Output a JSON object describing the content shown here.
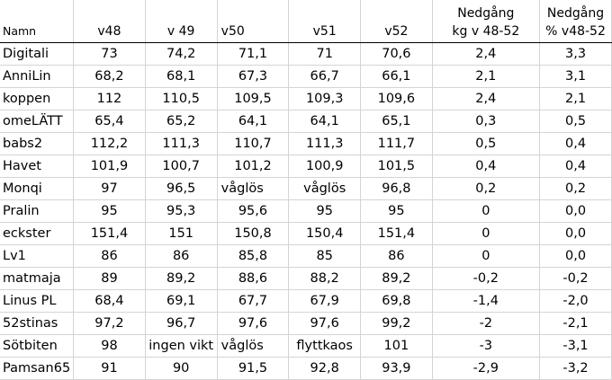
{
  "headers": {
    "name": "Namn",
    "w48": "v48",
    "w49": "v 49",
    "w50": "v50",
    "w51": "v51",
    "w52": "v52",
    "dec_kg_line1": "Nedgång",
    "dec_kg_line2": "kg v 48-52",
    "dec_pct_line1": "Nedgång",
    "dec_pct_line2": "% v48-52"
  },
  "rows": [
    {
      "name": "Digitali",
      "w48": "73",
      "w49": "74,2",
      "w50": "71,1",
      "w51": "71",
      "w52": "70,6",
      "dec_kg": "2,4",
      "dec_pct": "3,3"
    },
    {
      "name": "AnniLin",
      "w48": "68,2",
      "w49": "68,1",
      "w50": "67,3",
      "w51": "66,7",
      "w52": "66,1",
      "dec_kg": "2,1",
      "dec_pct": "3,1"
    },
    {
      "name": "koppen",
      "w48": "112",
      "w49": "110,5",
      "w50": "109,5",
      "w51": "109,3",
      "w52": "109,6",
      "dec_kg": "2,4",
      "dec_pct": "2,1"
    },
    {
      "name": "omeLÄTT",
      "w48": "65,4",
      "w49": "65,2",
      "w50": "64,1",
      "w51": "64,1",
      "w52": "65,1",
      "dec_kg": "0,3",
      "dec_pct": "0,5"
    },
    {
      "name": "babs2",
      "w48": "112,2",
      "w49": "111,3",
      "w50": "110,7",
      "w51": "111,3",
      "w52": "111,7",
      "dec_kg": "0,5",
      "dec_pct": "0,4"
    },
    {
      "name": "Havet",
      "w48": "101,9",
      "w49": "100,7",
      "w50": "101,2",
      "w51": "100,9",
      "w52": "101,5",
      "dec_kg": "0,4",
      "dec_pct": "0,4"
    },
    {
      "name": "Monqi",
      "w48": "97",
      "w49": "96,5",
      "w50": "våglös",
      "w51": "våglös",
      "w52": "96,8",
      "dec_kg": "0,2",
      "dec_pct": "0,2"
    },
    {
      "name": "Pralin",
      "w48": "95",
      "w49": "95,3",
      "w50": "95,6",
      "w51": "95",
      "w52": "95",
      "dec_kg": "0",
      "dec_pct": "0,0"
    },
    {
      "name": "eckster",
      "w48": "151,4",
      "w49": "151",
      "w50": "150,8",
      "w51": "150,4",
      "w52": "151,4",
      "dec_kg": "0",
      "dec_pct": "0,0"
    },
    {
      "name": "Lv1",
      "w48": "86",
      "w49": "86",
      "w50": "85,8",
      "w51": "85",
      "w52": "86",
      "dec_kg": "0",
      "dec_pct": "0,0"
    },
    {
      "name": "matmaja",
      "w48": "89",
      "w49": "89,2",
      "w50": "88,6",
      "w51": "88,2",
      "w52": "89,2",
      "dec_kg": "-0,2",
      "dec_pct": "-0,2"
    },
    {
      "name": "Linus PL",
      "w48": "68,4",
      "w49": "69,1",
      "w50": "67,7",
      "w51": "67,9",
      "w52": "69,8",
      "dec_kg": "-1,4",
      "dec_pct": "-2,0"
    },
    {
      "name": "52stinas",
      "w48": "97,2",
      "w49": "96,7",
      "w50": "97,6",
      "w51": "97,6",
      "w52": "99,2",
      "dec_kg": "-2",
      "dec_pct": "-2,1"
    },
    {
      "name": "Sötbiten",
      "w48": "98",
      "w49": "ingen vikt",
      "w50": "våglös",
      "w51": "flyttkaos",
      "w52": "101",
      "dec_kg": "-3",
      "dec_pct": "-3,1"
    },
    {
      "name": "Pamsan65",
      "w48": "91",
      "w49": "90",
      "w50": "91,5",
      "w51": "92,8",
      "w52": "93,9",
      "dec_kg": "-2,9",
      "dec_pct": "-3,2"
    }
  ]
}
